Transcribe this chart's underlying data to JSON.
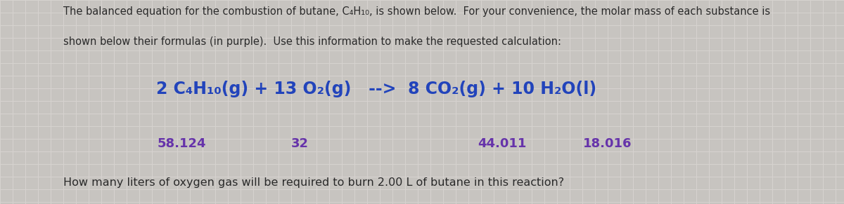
{
  "bg_color": "#c8c4c0",
  "text_color": "#2a2a2a",
  "blue_color": "#2244bb",
  "purple_color": "#6633aa",
  "header_line1": "The balanced equation for the combustion of butane, C₄H₁₀, is shown below.  For your convenience, the molar mass of each substance is",
  "header_line2": "shown below their formulas (in purple).  Use this information to make the requested calculation:",
  "eq_part1": "2 C₄H₁₀(g) + 13 O₂(g)   -->  8 CO₂(g) + 10 H₂O(l)",
  "mm_58": "58.124",
  "mm_32": "32",
  "mm_44": "44.011",
  "mm_18": "18.016",
  "footer_text": "How many liters of oxygen gas will be required to burn 2.00 L of butane in this reaction?",
  "header_fontsize": 10.5,
  "equation_fontsize": 17,
  "molar_mass_fontsize": 13,
  "footer_fontsize": 11.5,
  "grid_color": "#b8b4b0",
  "grid_color2": "#d4d0cc"
}
